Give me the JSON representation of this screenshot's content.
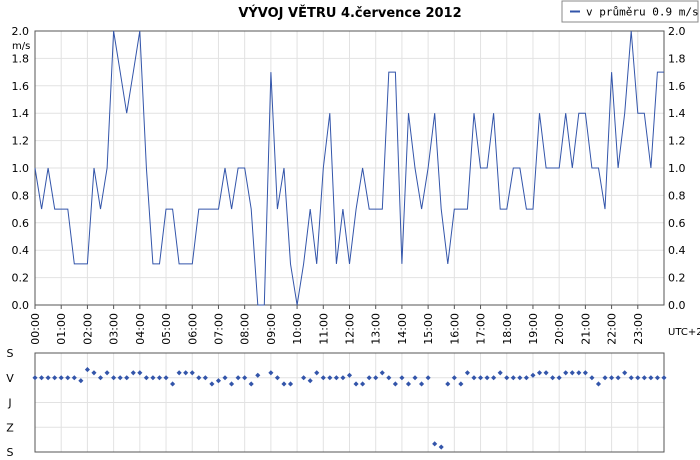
{
  "chart_data": [
    {
      "type": "line",
      "title": "VÝVOJ VĚTRU  4.července 2012",
      "ylabel": "m/s",
      "right_note": "UTC+2",
      "ylim": [
        0,
        2
      ],
      "xlim": [
        0,
        24
      ],
      "grid": true,
      "legend_position": "top-right",
      "yticks": [
        "0.0",
        "0.2",
        "0.4",
        "0.6",
        "0.8",
        "1.0",
        "1.2",
        "1.4",
        "1.6",
        "1.8",
        "2.0"
      ],
      "xticks": [
        "00:00",
        "01:00",
        "02:00",
        "03:00",
        "04:00",
        "05:00",
        "06:00",
        "07:00",
        "08:00",
        "09:00",
        "10:00",
        "11:00",
        "12:00",
        "13:00",
        "14:00",
        "15:00",
        "16:00",
        "17:00",
        "18:00",
        "19:00",
        "20:00",
        "21:00",
        "22:00",
        "23:00"
      ],
      "series": [
        {
          "name": "v průměru 0.9 m/s",
          "color": "#3355aa",
          "x": [
            0,
            0.25,
            0.5,
            0.75,
            1,
            1.25,
            1.5,
            1.75,
            2,
            2.25,
            2.5,
            2.75,
            3,
            3.25,
            3.5,
            3.75,
            4,
            4.25,
            4.5,
            4.75,
            5,
            5.25,
            5.5,
            5.75,
            6,
            6.25,
            6.5,
            6.75,
            7,
            7.25,
            7.5,
            7.75,
            8,
            8.25,
            8.5,
            8.75,
            9,
            9.25,
            9.5,
            9.75,
            10,
            10.25,
            10.5,
            10.75,
            11,
            11.25,
            11.5,
            11.75,
            12,
            12.25,
            12.5,
            12.75,
            13,
            13.25,
            13.5,
            13.75,
            14,
            14.25,
            14.5,
            14.75,
            15,
            15.25,
            15.5,
            15.75,
            16,
            16.25,
            16.5,
            16.75,
            17,
            17.25,
            17.5,
            17.75,
            18,
            18.25,
            18.5,
            18.75,
            19,
            19.25,
            19.5,
            19.75,
            20,
            20.25,
            20.5,
            20.75,
            21,
            21.25,
            21.5,
            21.75,
            22,
            22.25,
            22.5,
            22.75,
            23,
            23.25,
            23.5,
            23.75,
            24
          ],
          "y": [
            1.0,
            0.7,
            1.0,
            0.7,
            0.7,
            0.7,
            0.3,
            0.3,
            0.3,
            1.0,
            0.7,
            1.0,
            2.0,
            1.7,
            1.4,
            1.7,
            2.0,
            1.0,
            0.3,
            0.3,
            0.7,
            0.7,
            0.3,
            0.3,
            0.3,
            0.7,
            0.7,
            0.7,
            0.7,
            1.0,
            0.7,
            1.0,
            1.0,
            0.7,
            0.0,
            0.0,
            1.7,
            0.7,
            1.0,
            0.3,
            0.0,
            0.3,
            0.7,
            0.3,
            1.0,
            1.4,
            0.3,
            0.7,
            0.3,
            0.7,
            1.0,
            0.7,
            0.7,
            0.7,
            1.7,
            1.7,
            0.3,
            1.4,
            1.0,
            0.7,
            1.0,
            1.4,
            0.7,
            0.3,
            0.7,
            0.7,
            0.7,
            1.4,
            1.0,
            1.0,
            1.4,
            0.7,
            0.7,
            1.0,
            1.0,
            0.7,
            0.7,
            1.4,
            1.0,
            1.0,
            1.0,
            1.4,
            1.0,
            1.4,
            1.4,
            1.0,
            1.0,
            0.7,
            1.7,
            1.0,
            1.4,
            2.0,
            1.4,
            1.4,
            1.0,
            1.7,
            1.7
          ]
        }
      ]
    },
    {
      "type": "scatter",
      "ylabel": "",
      "ylim": [
        0,
        4
      ],
      "yticks": [
        "S",
        "V",
        "J",
        "Z",
        "S"
      ],
      "grid": true,
      "series": [
        {
          "name": "",
          "color": "#3355aa",
          "x": [
            0,
            0.25,
            0.5,
            0.75,
            1,
            1.25,
            1.5,
            1.75,
            2,
            2.25,
            2.5,
            2.75,
            3,
            3.25,
            3.5,
            3.75,
            4,
            4.25,
            4.5,
            4.75,
            5,
            5.25,
            5.5,
            5.75,
            6,
            6.25,
            6.5,
            6.75,
            7,
            7.25,
            7.5,
            7.75,
            8,
            8.25,
            8.5,
            8.75,
            9,
            9.25,
            9.5,
            9.75,
            10,
            10.25,
            10.5,
            10.75,
            11,
            11.25,
            11.5,
            11.75,
            12,
            12.25,
            12.5,
            12.75,
            13,
            13.25,
            13.5,
            13.75,
            14,
            14.25,
            14.5,
            14.75,
            15,
            15.25,
            15.5,
            15.75,
            16,
            16.25,
            16.5,
            16.75,
            17,
            17.25,
            17.5,
            17.75,
            18,
            18.25,
            18.5,
            18.75,
            19,
            19.25,
            19.5,
            19.75,
            20,
            20.25,
            20.5,
            20.75,
            21,
            21.25,
            21.5,
            21.75,
            22,
            22.25,
            22.5,
            22.75,
            23,
            23.25,
            23.5,
            23.75,
            24
          ],
          "y": [
            3.0,
            3.0,
            3.0,
            3.0,
            3.0,
            3.0,
            3.0,
            2.88,
            3.33,
            3.2,
            3.0,
            3.2,
            3.0,
            3.0,
            3.0,
            3.2,
            3.2,
            3.0,
            3.0,
            3.0,
            3.0,
            2.75,
            3.2,
            3.2,
            3.2,
            3.0,
            3.0,
            2.75,
            2.88,
            3.0,
            2.75,
            3.0,
            3.0,
            2.75,
            3.1,
            null,
            3.2,
            3.0,
            2.75,
            2.75,
            null,
            3.0,
            2.88,
            3.2,
            3.0,
            3.0,
            3.0,
            3.0,
            3.1,
            2.75,
            2.75,
            3.0,
            3.0,
            3.2,
            3.0,
            2.75,
            3.0,
            2.75,
            3.0,
            2.75,
            3.0,
            0.33,
            0.2,
            2.75,
            3.0,
            2.75,
            3.2,
            3.0,
            3.0,
            3.0,
            3.0,
            3.2,
            3.0,
            3.0,
            3.0,
            3.0,
            3.1,
            3.2,
            3.2,
            3.0,
            3.0,
            3.2,
            3.2,
            3.2,
            3.2,
            3.0,
            2.75,
            3.0,
            3.0,
            3.0,
            3.2,
            3.0,
            3.0,
            3.0,
            3.0,
            3.0,
            3.0
          ]
        }
      ]
    }
  ]
}
